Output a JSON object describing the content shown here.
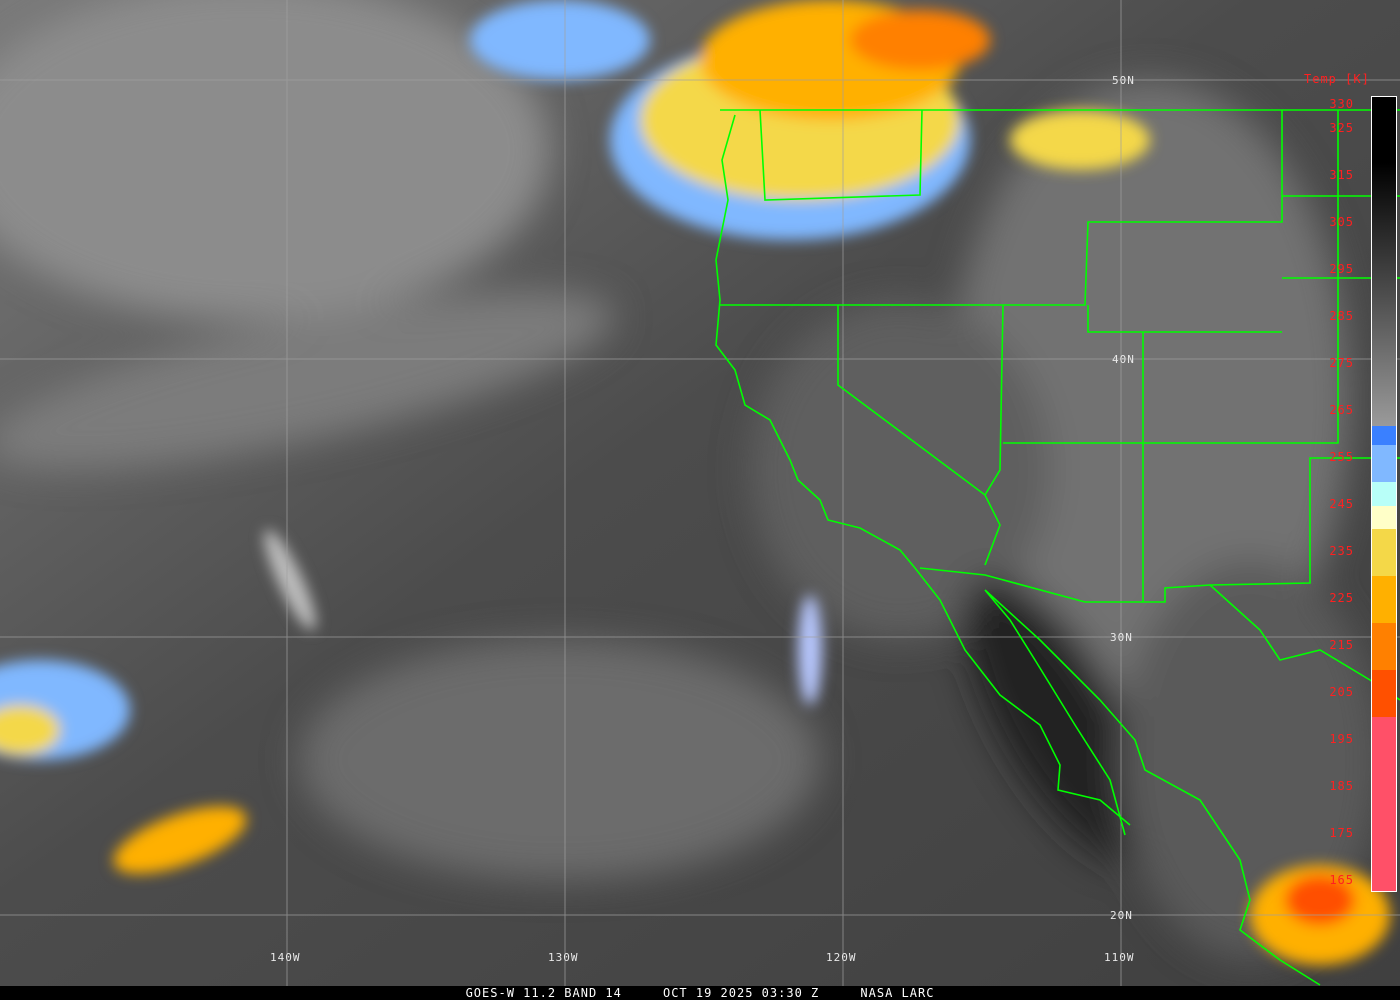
{
  "caption": {
    "satellite": "GOES-W 11.2 BAND 14",
    "datetime": "OCT 19 2025 03:30 Z",
    "source": "NASA LARC"
  },
  "colorbar": {
    "title": "Temp [K]",
    "ticks": [
      "330",
      "325",
      "315",
      "305",
      "295",
      "285",
      "275",
      "265",
      "255",
      "245",
      "235",
      "225",
      "215",
      "205",
      "195",
      "185",
      "175",
      "165"
    ],
    "range_k": [
      163,
      332
    ],
    "segments": [
      {
        "from": 262,
        "to": 332,
        "color": "grayscale"
      },
      {
        "from": 258,
        "to": 262,
        "color": "#3a80ff"
      },
      {
        "from": 250,
        "to": 258,
        "color": "#80b8ff"
      },
      {
        "from": 245,
        "to": 250,
        "color": "#b8fff8"
      },
      {
        "from": 240,
        "to": 245,
        "color": "#ffffc8"
      },
      {
        "from": 230,
        "to": 240,
        "color": "#f4d848"
      },
      {
        "from": 220,
        "to": 230,
        "color": "#ffb000"
      },
      {
        "from": 210,
        "to": 220,
        "color": "#ff8000"
      },
      {
        "from": 200,
        "to": 210,
        "color": "#ff5000"
      },
      {
        "from": 163,
        "to": 200,
        "color": "#ff5068"
      }
    ]
  },
  "grid": {
    "latitudes": [
      "50N",
      "40N",
      "30N",
      "20N"
    ],
    "longitudes": [
      "140W",
      "130W",
      "120W",
      "110W"
    ]
  },
  "colors": {
    "boundaries": "#00ff00",
    "grid": "#a0a0a0",
    "labels": "#ff2020"
  }
}
